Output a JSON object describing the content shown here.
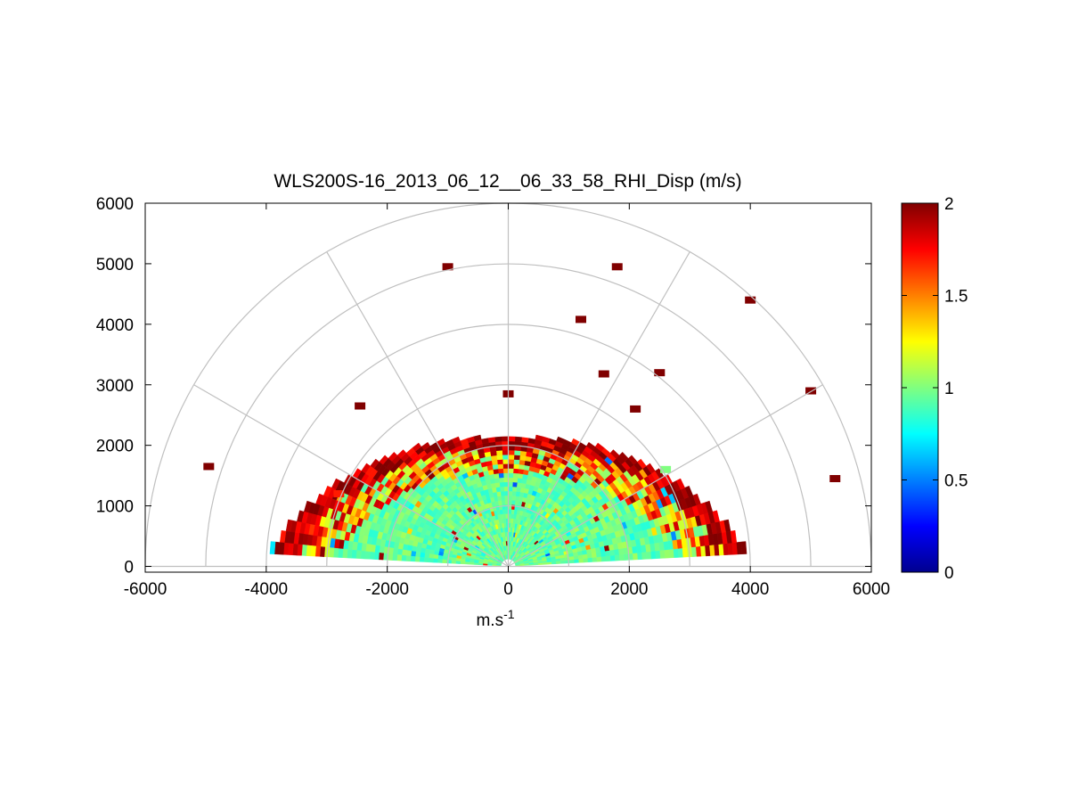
{
  "chart_data": {
    "type": "heatmap",
    "subtype": "polar-rhi-scan",
    "title": "WLS200S-16_2013_06_12__06_33_58_RHI_Disp (m/s)",
    "xlabel_base": "m.s",
    "xlabel_sup": "-1",
    "ylabel": "",
    "xlim": [
      -6000,
      6000
    ],
    "ylim": [
      0,
      6000
    ],
    "xticks": [
      -6000,
      -4000,
      -2000,
      0,
      2000,
      4000,
      6000
    ],
    "yticks": [
      0,
      1000,
      2000,
      3000,
      4000,
      5000,
      6000
    ],
    "xtick_labels": [
      "-6000",
      "-4000",
      "-2000",
      "0",
      "2000",
      "4000",
      "6000"
    ],
    "ytick_labels": [
      "0",
      "1000",
      "2000",
      "3000",
      "4000",
      "5000",
      "6000"
    ],
    "polar_grid": {
      "rings": [
        1000,
        2000,
        3000,
        4000,
        5000,
        6000
      ],
      "spokes_deg": [
        0,
        30,
        60,
        90,
        120,
        150,
        180
      ]
    },
    "colorbar": {
      "colormap": "jet",
      "clim": [
        0,
        2
      ],
      "ticks": [
        0,
        0.5,
        1,
        1.5,
        2
      ],
      "tick_labels": [
        "0",
        "0.5",
        "1",
        "1.5",
        "2"
      ]
    },
    "scan": {
      "elevation_deg_min": 3,
      "elevation_deg_max": 177,
      "range_min": 0,
      "range_max_low_elevation": 4200,
      "range_max_high_elevation": 2100,
      "dominant_value": 0.95,
      "edge_value": 2.0,
      "description": "Dispersion values near 0.9-1.0 m/s close to the lidar, increasing to 2 m/s at the outer edge of the scan; scattered isolated points up to 5000 m."
    },
    "sample_cells": [
      {
        "x": -1000,
        "y": 4950,
        "value": 2.0
      },
      {
        "x": 1800,
        "y": 4950,
        "value": 2.0
      },
      {
        "x": 4000,
        "y": 4400,
        "value": 2.0
      },
      {
        "x": 1200,
        "y": 4080,
        "value": 2.0
      },
      {
        "x": 1580,
        "y": 3180,
        "value": 2.0
      },
      {
        "x": 2500,
        "y": 3200,
        "value": 2.0
      },
      {
        "x": 5000,
        "y": 2900,
        "value": 2.0
      },
      {
        "x": -2450,
        "y": 2650,
        "value": 2.0
      },
      {
        "x": 2100,
        "y": 2600,
        "value": 2.0
      },
      {
        "x": 0,
        "y": 2850,
        "value": 2.0
      },
      {
        "x": 5400,
        "y": 1450,
        "value": 2.0
      },
      {
        "x": -4950,
        "y": 1650,
        "value": 2.0
      },
      {
        "x": 2600,
        "y": 1600,
        "value": 1.0
      },
      {
        "x": -2800,
        "y": 1200,
        "value": 1.7
      }
    ]
  }
}
